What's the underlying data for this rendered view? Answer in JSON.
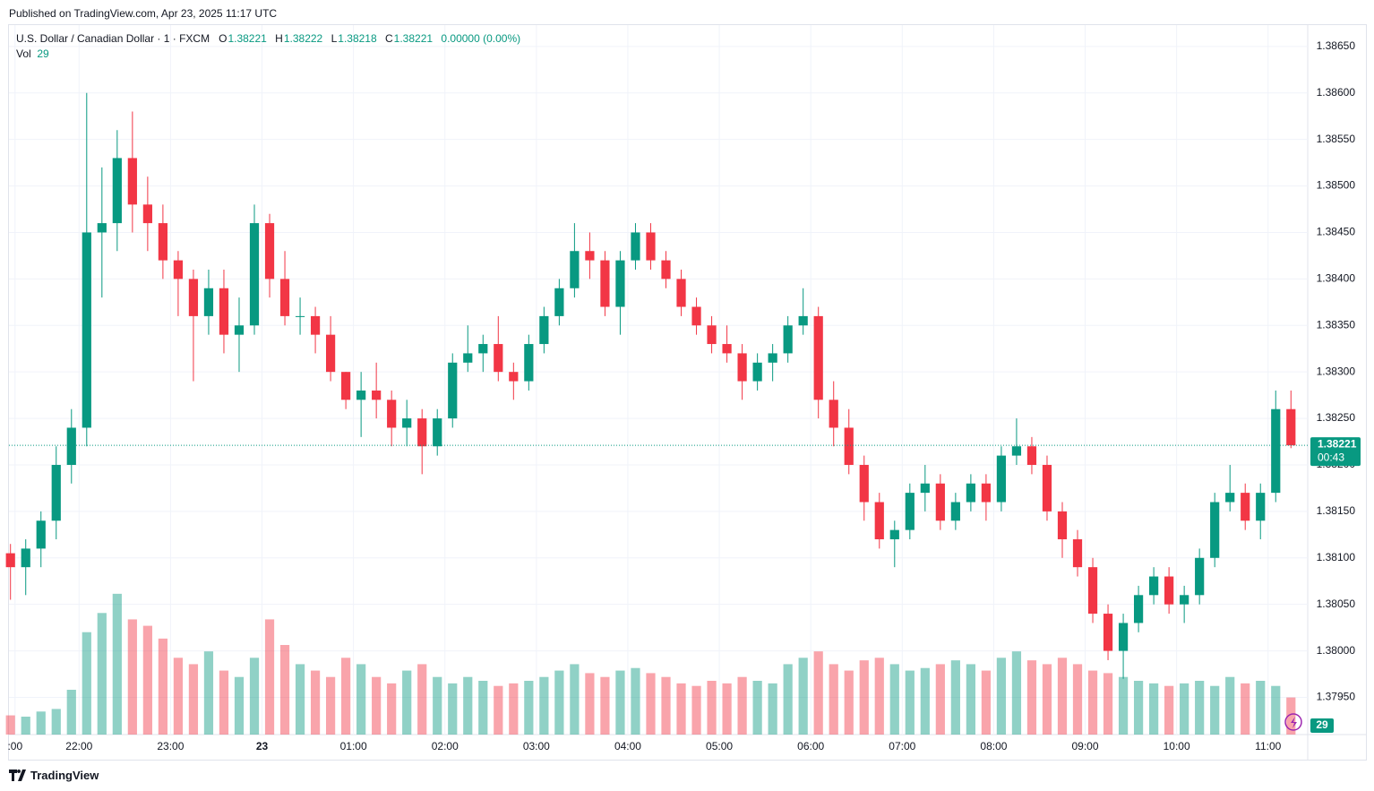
{
  "published": "Published on TradingView.com, Apr 23, 2025 11:17 UTC",
  "chart_data": {
    "type": "candlestick",
    "title": "U.S. Dollar / Canadian Dollar · 1 · FXCM",
    "legend": {
      "open": 1.38221,
      "high": 1.38222,
      "low": 1.38218,
      "close": 1.38221,
      "change": "0.00000 (0.00%)",
      "vol_label": "Vol",
      "labels": [
        "O",
        "H",
        "L",
        "C"
      ]
    },
    "x": [
      "21:15",
      "21:25",
      "21:35",
      "21:45",
      "21:55",
      "22:05",
      "22:15",
      "22:25",
      "22:35",
      "22:45",
      "22:55",
      "23:05",
      "23:15",
      "23:25",
      "23:35",
      "23:45",
      "23:55",
      "00:05",
      "00:15",
      "00:25",
      "00:35",
      "00:45",
      "00:55",
      "01:05",
      "01:15",
      "01:25",
      "01:35",
      "01:45",
      "01:55",
      "02:05",
      "02:15",
      "02:25",
      "02:35",
      "02:45",
      "02:55",
      "03:05",
      "03:15",
      "03:25",
      "03:35",
      "03:45",
      "03:55",
      "04:05",
      "04:15",
      "04:25",
      "04:35",
      "04:45",
      "04:55",
      "05:05",
      "05:15",
      "05:25",
      "05:35",
      "05:45",
      "05:55",
      "06:05",
      "06:15",
      "06:25",
      "06:35",
      "06:45",
      "06:55",
      "07:05",
      "07:15",
      "07:25",
      "07:35",
      "07:45",
      "07:55",
      "08:05",
      "08:15",
      "08:25",
      "08:35",
      "08:45",
      "08:55",
      "09:05",
      "09:15",
      "09:25",
      "09:35",
      "09:45",
      "09:55",
      "10:05",
      "10:15",
      "10:25",
      "10:35",
      "10:45",
      "10:55",
      "11:05",
      "11:15"
    ],
    "open": [
      1.38105,
      1.3809,
      1.3811,
      1.3814,
      1.382,
      1.3824,
      1.3845,
      1.3846,
      1.3853,
      1.3848,
      1.3846,
      1.3842,
      1.384,
      1.3836,
      1.3839,
      1.3834,
      1.3835,
      1.3846,
      1.384,
      1.3836,
      1.3836,
      1.3834,
      1.383,
      1.3827,
      1.3828,
      1.3827,
      1.3824,
      1.3825,
      1.3822,
      1.3825,
      1.3831,
      1.3832,
      1.3833,
      1.383,
      1.3829,
      1.3833,
      1.3836,
      1.3839,
      1.3843,
      1.3842,
      1.3837,
      1.3842,
      1.3845,
      1.3842,
      1.384,
      1.3837,
      1.3835,
      1.3833,
      1.3832,
      1.3829,
      1.3831,
      1.3832,
      1.3835,
      1.3836,
      1.3827,
      1.3824,
      1.382,
      1.3816,
      1.3812,
      1.3813,
      1.3817,
      1.3818,
      1.3814,
      1.3816,
      1.3818,
      1.3816,
      1.3821,
      1.3822,
      1.382,
      1.3815,
      1.3812,
      1.3809,
      1.3804,
      1.38,
      1.3803,
      1.3806,
      1.3808,
      1.3805,
      1.3806,
      1.381,
      1.3816,
      1.3817,
      1.3814,
      1.3817,
      1.3826
    ],
    "high": [
      1.38115,
      1.3812,
      1.3815,
      1.3822,
      1.3826,
      1.386,
      1.3852,
      1.3856,
      1.3858,
      1.3851,
      1.3848,
      1.3843,
      1.3841,
      1.3841,
      1.3841,
      1.3838,
      1.3848,
      1.3847,
      1.3843,
      1.3838,
      1.3837,
      1.3836,
      1.383,
      1.383,
      1.3831,
      1.3828,
      1.3827,
      1.3826,
      1.3826,
      1.3832,
      1.3835,
      1.3834,
      1.3836,
      1.3831,
      1.3834,
      1.3837,
      1.384,
      1.3846,
      1.3845,
      1.3843,
      1.3843,
      1.3846,
      1.3846,
      1.3843,
      1.3841,
      1.3838,
      1.3836,
      1.3835,
      1.3833,
      1.3832,
      1.3833,
      1.3836,
      1.3839,
      1.3837,
      1.3829,
      1.3826,
      1.3821,
      1.3817,
      1.3814,
      1.3818,
      1.382,
      1.3819,
      1.3817,
      1.3819,
      1.3819,
      1.3822,
      1.3825,
      1.3823,
      1.3821,
      1.3816,
      1.3813,
      1.381,
      1.3805,
      1.3804,
      1.3807,
      1.3809,
      1.3809,
      1.3807,
      1.3811,
      1.3817,
      1.382,
      1.3818,
      1.3818,
      1.3828,
      1.3828
    ],
    "low": [
      1.38055,
      1.3806,
      1.3809,
      1.3812,
      1.3818,
      1.3822,
      1.3838,
      1.3843,
      1.3845,
      1.3843,
      1.384,
      1.3836,
      1.3829,
      1.3834,
      1.3832,
      1.383,
      1.3834,
      1.3838,
      1.3835,
      1.3834,
      1.3832,
      1.3829,
      1.3826,
      1.3823,
      1.3825,
      1.3822,
      1.3822,
      1.3819,
      1.3821,
      1.3824,
      1.383,
      1.383,
      1.3829,
      1.3827,
      1.3828,
      1.3832,
      1.3835,
      1.3838,
      1.384,
      1.3836,
      1.3834,
      1.3841,
      1.3841,
      1.3839,
      1.3836,
      1.3834,
      1.3832,
      1.3831,
      1.3827,
      1.3828,
      1.3829,
      1.3831,
      1.3834,
      1.3825,
      1.3822,
      1.3819,
      1.3814,
      1.3811,
      1.3809,
      1.3812,
      1.3815,
      1.3813,
      1.3813,
      1.3815,
      1.3814,
      1.3815,
      1.382,
      1.3819,
      1.3814,
      1.381,
      1.3808,
      1.3803,
      1.3799,
      1.3797,
      1.3802,
      1.3805,
      1.3804,
      1.3803,
      1.3805,
      1.3809,
      1.3815,
      1.3813,
      1.3812,
      1.3816,
      1.38218
    ],
    "close": [
      1.3809,
      1.3811,
      1.3814,
      1.382,
      1.3824,
      1.3845,
      1.3846,
      1.3853,
      1.3848,
      1.3846,
      1.3842,
      1.384,
      1.3836,
      1.3839,
      1.3834,
      1.3835,
      1.3846,
      1.384,
      1.3836,
      1.3836,
      1.3834,
      1.383,
      1.3827,
      1.3828,
      1.3827,
      1.3824,
      1.3825,
      1.3822,
      1.3825,
      1.3831,
      1.3832,
      1.3833,
      1.383,
      1.3829,
      1.3833,
      1.3836,
      1.3839,
      1.3843,
      1.3842,
      1.3837,
      1.3842,
      1.3845,
      1.3842,
      1.384,
      1.3837,
      1.3835,
      1.3833,
      1.3832,
      1.3829,
      1.3831,
      1.3832,
      1.3835,
      1.3836,
      1.3827,
      1.3824,
      1.382,
      1.3816,
      1.3812,
      1.3813,
      1.3817,
      1.3818,
      1.3814,
      1.3816,
      1.3818,
      1.3816,
      1.3821,
      1.3822,
      1.382,
      1.3815,
      1.3812,
      1.3809,
      1.3804,
      1.38,
      1.3803,
      1.3806,
      1.3808,
      1.3805,
      1.3806,
      1.381,
      1.3816,
      1.3817,
      1.3814,
      1.3817,
      1.3826,
      1.38221
    ],
    "volume": [
      15,
      14,
      18,
      20,
      35,
      80,
      95,
      110,
      90,
      85,
      75,
      60,
      55,
      65,
      50,
      45,
      60,
      90,
      70,
      55,
      50,
      45,
      60,
      55,
      45,
      40,
      50,
      55,
      45,
      40,
      45,
      42,
      38,
      40,
      42,
      45,
      50,
      55,
      48,
      45,
      50,
      52,
      48,
      45,
      40,
      38,
      42,
      40,
      45,
      42,
      40,
      55,
      60,
      65,
      55,
      50,
      58,
      60,
      55,
      50,
      52,
      55,
      58,
      55,
      50,
      60,
      65,
      58,
      55,
      60,
      55,
      50,
      48,
      45,
      42,
      40,
      38,
      40,
      42,
      38,
      45,
      40,
      42,
      38,
      29
    ],
    "up_color": "#089981",
    "down_color": "#f23645",
    "ylim": [
      1.3791,
      1.38673
    ],
    "yticks": [
      {
        "value": 1.3795,
        "label": "1.37950"
      },
      {
        "value": 1.38,
        "label": "1.38000"
      },
      {
        "value": 1.3805,
        "label": "1.38050"
      },
      {
        "value": 1.381,
        "label": "1.38100"
      },
      {
        "value": 1.3815,
        "label": "1.38150"
      },
      {
        "value": 1.382,
        "label": "1.38200"
      },
      {
        "value": 1.3825,
        "label": "1.38250"
      },
      {
        "value": 1.383,
        "label": "1.38300"
      },
      {
        "value": 1.3835,
        "label": "1.38350"
      },
      {
        "value": 1.384,
        "label": "1.38400"
      },
      {
        "value": 1.3845,
        "label": "1.38450"
      },
      {
        "value": 1.385,
        "label": "1.38500"
      },
      {
        "value": 1.3855,
        "label": "1.38550"
      },
      {
        "value": 1.386,
        "label": "1.38600"
      },
      {
        "value": 1.3865,
        "label": "1.38650"
      }
    ],
    "xlim": [
      "21:14",
      "11:26"
    ],
    "xticks": [
      {
        "value": "21:18",
        "label": ":00"
      },
      {
        "value": "22:00",
        "label": "22:00"
      },
      {
        "value": "23:00",
        "label": "23:00"
      },
      {
        "value": "00:00",
        "label": "23"
      },
      {
        "value": "01:00",
        "label": "01:00"
      },
      {
        "value": "02:00",
        "label": "02:00"
      },
      {
        "value": "03:00",
        "label": "03:00"
      },
      {
        "value": "04:00",
        "label": "04:00"
      },
      {
        "value": "05:00",
        "label": "05:00"
      },
      {
        "value": "06:00",
        "label": "06:00"
      },
      {
        "value": "07:00",
        "label": "07:00"
      },
      {
        "value": "08:00",
        "label": "08:00"
      },
      {
        "value": "09:00",
        "label": "09:00"
      },
      {
        "value": "10:00",
        "label": "10:00"
      },
      {
        "value": "11:00",
        "label": "11:00"
      }
    ],
    "y2lim": [
      0,
      140
    ],
    "current_price": 1.38221,
    "countdown": "00:43",
    "grid": true
  },
  "footer": "TradingView"
}
